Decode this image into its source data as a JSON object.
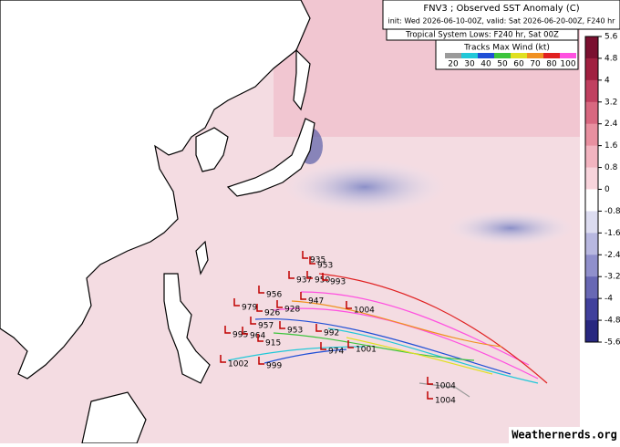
{
  "header": {
    "title": "FNV3 ; Observed SST Anomaly (C)",
    "subtitle": "init: Wed 2026-06-10-00Z, valid: Sat 2026-06-20-00Z, F240 hr",
    "lows_note": "Tropical System Lows: F240 hr, Sat 00Z"
  },
  "legend": {
    "title": "Tracks Max Wind (kt)",
    "items": [
      {
        "label": 20,
        "color": "#9a9a9a"
      },
      {
        "label": 30,
        "color": "#22c8d8"
      },
      {
        "label": 40,
        "color": "#1f4fd6"
      },
      {
        "label": 50,
        "color": "#3cc43c"
      },
      {
        "label": 60,
        "color": "#e0e020"
      },
      {
        "label": 70,
        "color": "#f09020"
      },
      {
        "label": 80,
        "color": "#e02020"
      },
      {
        "label": 100,
        "color": "#ff50e0"
      }
    ]
  },
  "colorbar": {
    "ticks": [
      5.6,
      4.8,
      4,
      3.2,
      2.4,
      1.6,
      0.8,
      0,
      -0.8,
      -1.6,
      -2.4,
      -3.2,
      -4,
      -4.8,
      -5.6
    ],
    "colors": [
      "#7a1030",
      "#a02040",
      "#c04060",
      "#d86880",
      "#e890a0",
      "#f2b4c0",
      "#f8d4dc",
      "#ffffff",
      "#dcdcf0",
      "#b8b8e0",
      "#9090cc",
      "#6868b4",
      "#40409c",
      "#282880"
    ]
  },
  "lows": [
    "935",
    "953",
    "937",
    "950",
    "993",
    "947",
    "1004",
    "956",
    "928",
    "979",
    "926",
    "995",
    "964",
    "957",
    "953",
    "992",
    "915",
    "974",
    "1001",
    "1002",
    "999",
    "1004",
    "1004"
  ],
  "credit": "Weathernerds.org"
}
